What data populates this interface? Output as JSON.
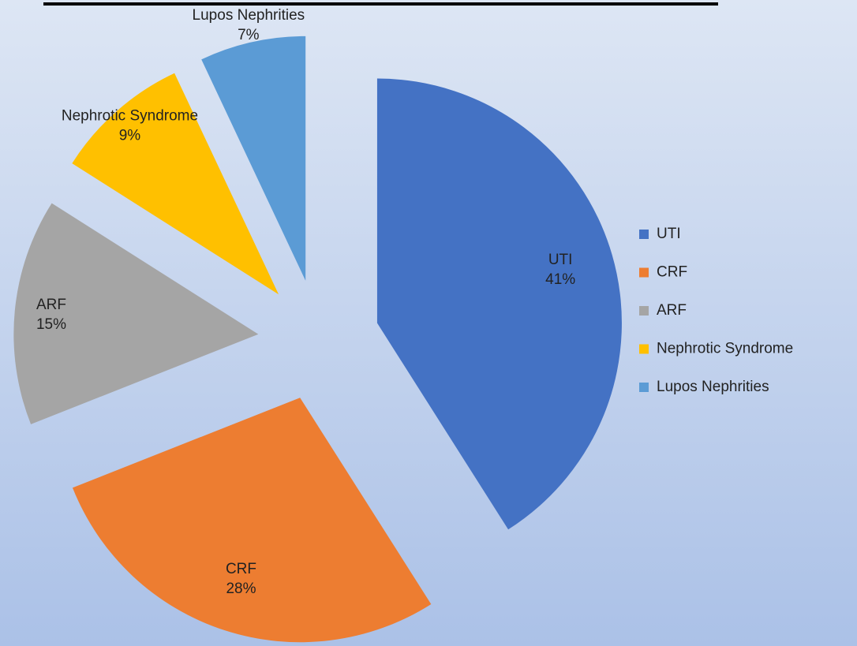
{
  "chart_data": {
    "type": "pie",
    "categories": [
      "UTI",
      "CRF",
      "ARF",
      "Nephrotic Syndrome",
      "Lupos Nephrities"
    ],
    "values": [
      41,
      28,
      15,
      9,
      7
    ],
    "value_labels": [
      "41%",
      "28%",
      "15%",
      "9%",
      "7%"
    ],
    "colors": [
      "#4472c4",
      "#ed7d31",
      "#a5a5a5",
      "#ffc000",
      "#5b9bd5"
    ],
    "legend": "right"
  }
}
